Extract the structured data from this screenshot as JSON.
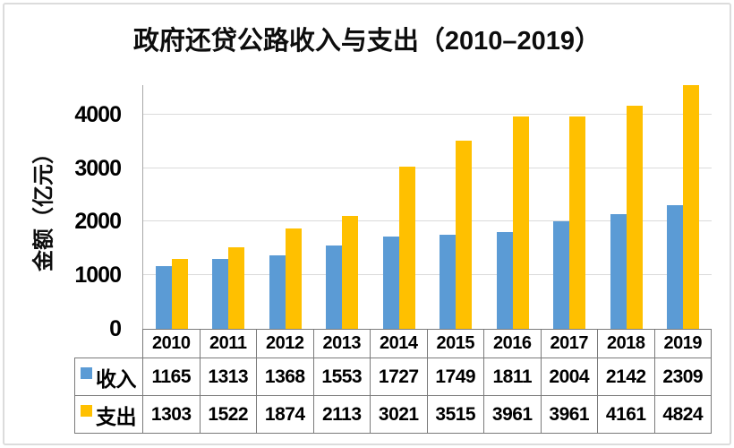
{
  "chart_data": {
    "type": "bar",
    "title": "政府还贷公路收入与支出（2010–2019）",
    "ylabel": "金额（亿元）",
    "xlabel": "",
    "categories": [
      "2010",
      "2011",
      "2012",
      "2013",
      "2014",
      "2015",
      "2016",
      "2017",
      "2018",
      "2019"
    ],
    "series": [
      {
        "name": "收入",
        "color": "#5B9BD5",
        "values": [
          1165,
          1313,
          1368,
          1553,
          1727,
          1749,
          1811,
          2004,
          2142,
          2309
        ]
      },
      {
        "name": "支出",
        "color": "#FFC000",
        "values": [
          1303,
          1522,
          1874,
          2113,
          3021,
          3515,
          3961,
          3961,
          4161,
          4824
        ]
      }
    ],
    "yticks": [
      0,
      1000,
      2000,
      3000,
      4000
    ],
    "ylim": [
      0,
      4550
    ],
    "grid": true,
    "legend_position": "table-left-of-data-table",
    "colors": {
      "grid": "#dadada",
      "axis": "#a8a8a8",
      "table_border": "#7a7a7a",
      "text": "#000000",
      "frame": "#dcdcdc"
    }
  }
}
